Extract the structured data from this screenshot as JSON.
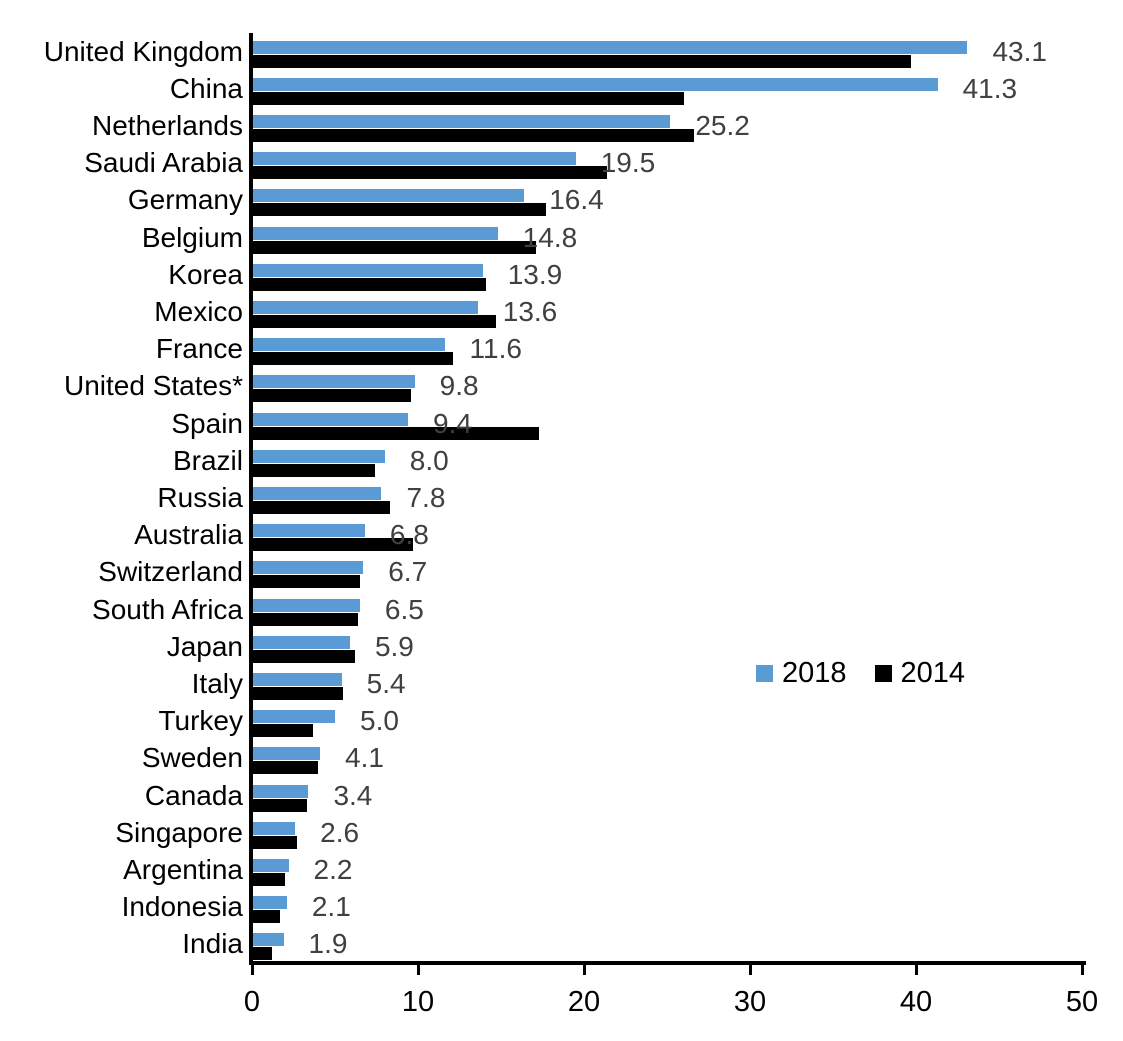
{
  "chart_data": {
    "type": "bar",
    "orientation": "horizontal",
    "title": "",
    "xlabel": "",
    "ylabel": "",
    "xlim": [
      0,
      50
    ],
    "x_ticks": [
      "0",
      "10",
      "20",
      "30",
      "40",
      "50"
    ],
    "grid": false,
    "legend_position": "middle-right",
    "categories": [
      "United Kingdom",
      "China",
      "Netherlands",
      "Saudi Arabia",
      "Germany",
      "Belgium",
      "Korea",
      "Mexico",
      "France",
      "United States*",
      "Spain",
      "Brazil",
      "Russia",
      "Australia",
      "Switzerland",
      "South Africa",
      "Japan",
      "Italy",
      "Turkey",
      "Sweden",
      "Canada",
      "Singapore",
      "Argentina",
      "Indonesia",
      "India"
    ],
    "series": [
      {
        "name": "2018",
        "color": "#5B9BD5",
        "data_labels_shown": true,
        "values": [
          43.1,
          41.3,
          25.2,
          19.5,
          16.4,
          14.8,
          13.9,
          13.6,
          11.6,
          9.8,
          9.4,
          8.0,
          7.8,
          6.8,
          6.7,
          6.5,
          5.9,
          5.4,
          5.0,
          4.1,
          3.4,
          2.6,
          2.2,
          2.1,
          1.9
        ]
      },
      {
        "name": "2014",
        "color": "#000000",
        "data_labels_shown": false,
        "values": [
          39.7,
          26.0,
          26.6,
          21.4,
          17.7,
          17.1,
          14.1,
          14.7,
          12.1,
          9.6,
          17.3,
          7.4,
          8.3,
          9.7,
          6.5,
          6.4,
          6.2,
          5.5,
          3.7,
          4.0,
          3.3,
          2.7,
          2.0,
          1.7,
          1.2
        ]
      }
    ],
    "value_label_color": "#404040",
    "axis_color": "#000000"
  }
}
